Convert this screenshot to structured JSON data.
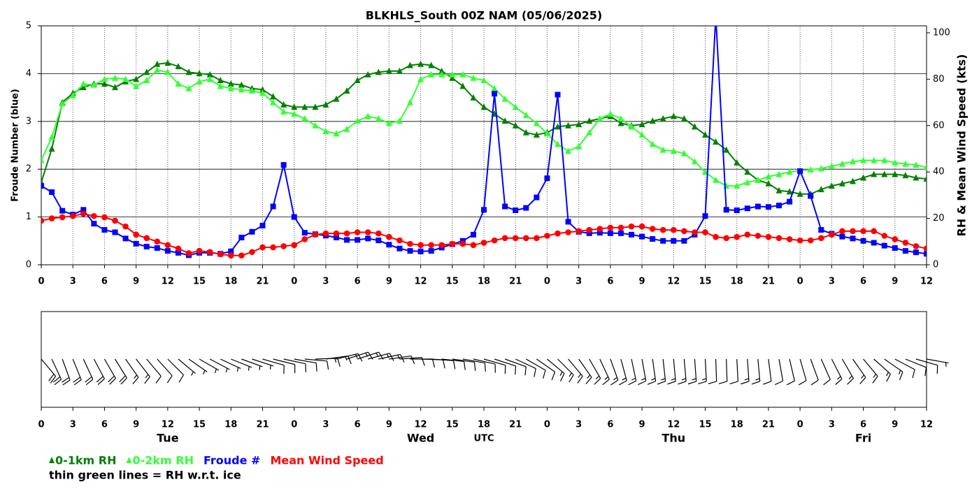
{
  "chart_data": {
    "type": "line",
    "title": "BLKHLS_South 00Z NAM (05/06/2025)",
    "ylabel": "Froude Number (blue)",
    "y2label": "RH & Mean Wind Speed (kts)",
    "xlabel": "UTC",
    "note": "thin green lines = RH w.r.t. ice",
    "xlim": [
      0,
      84
    ],
    "xticks": [
      0,
      3,
      6,
      9,
      12,
      15,
      18,
      21,
      {
        "value": 24,
        "label": "0"
      },
      {
        "value": 27,
        "label": "3"
      },
      {
        "value": 30,
        "label": "6"
      },
      {
        "value": 33,
        "label": "9"
      },
      {
        "value": 36,
        "label": "12"
      },
      {
        "value": 39,
        "label": "15"
      },
      {
        "value": 42,
        "label": "18"
      },
      {
        "value": 45,
        "label": "21"
      },
      {
        "value": 48,
        "label": "0"
      },
      {
        "value": 51,
        "label": "3"
      },
      {
        "value": 54,
        "label": "6"
      },
      {
        "value": 57,
        "label": "9"
      },
      {
        "value": 60,
        "label": "12"
      },
      {
        "value": 63,
        "label": "15"
      },
      {
        "value": 66,
        "label": "18"
      },
      {
        "value": 69,
        "label": "21"
      },
      {
        "value": 72,
        "label": "0"
      },
      {
        "value": 75,
        "label": "3"
      },
      {
        "value": 78,
        "label": "6"
      },
      {
        "value": 81,
        "label": "9"
      },
      {
        "value": 84,
        "label": "12"
      }
    ],
    "ylim": [
      0,
      5
    ],
    "yticks": [
      0,
      1,
      2,
      3,
      4,
      5
    ],
    "y2lim": [
      0,
      103
    ],
    "y2ticks": [
      0,
      20,
      40,
      60,
      80,
      100
    ],
    "grid": true,
    "day_labels": [
      {
        "label": "Tue",
        "x": 12
      },
      {
        "label": "Wed",
        "x": 36
      },
      {
        "label": "Thu",
        "x": 60
      },
      {
        "label": "Fri",
        "x": 78
      }
    ],
    "x": [
      0,
      1,
      2,
      3,
      4,
      5,
      6,
      7,
      8,
      9,
      10,
      11,
      12,
      13,
      14,
      15,
      16,
      17,
      18,
      19,
      20,
      21,
      22,
      23,
      24,
      25,
      26,
      27,
      28,
      29,
      30,
      31,
      32,
      33,
      34,
      35,
      36,
      37,
      38,
      39,
      40,
      41,
      42,
      43,
      44,
      45,
      46,
      47,
      48,
      49,
      50,
      51,
      52,
      53,
      54,
      55,
      56,
      57,
      58,
      59,
      60,
      61,
      62,
      63,
      64,
      65,
      66,
      67,
      68,
      69,
      70,
      71,
      72,
      73,
      74,
      75,
      76,
      77,
      78,
      79,
      80,
      81,
      82,
      83,
      84
    ],
    "series": [
      {
        "name": "0-1km RH",
        "color": "#008000",
        "marker": "triangle",
        "axis": "y2",
        "values": [
          35.5,
          50,
          70,
          74,
          76.5,
          78,
          78,
          76.5,
          79,
          80,
          83,
          86.5,
          87,
          85.5,
          83,
          82.5,
          82,
          79.5,
          78,
          77.5,
          76,
          75.5,
          72.5,
          69,
          68,
          68,
          68,
          69,
          71.5,
          75,
          79.5,
          82,
          83,
          83.5,
          83.5,
          86,
          86.5,
          86,
          83.5,
          80.5,
          77,
          72,
          68,
          65,
          62,
          60,
          57,
          56,
          57,
          59.5,
          60,
          60.5,
          62,
          63,
          64,
          61,
          60,
          60.5,
          62,
          63,
          64,
          63,
          59.5,
          56,
          53,
          49.5,
          44,
          40,
          36.5,
          35,
          32,
          31.5,
          30.5,
          30.5,
          32.5,
          34,
          35,
          36,
          37.5,
          39,
          39,
          39,
          38.5,
          37.5,
          37
        ]
      },
      {
        "name": "0-2km RH",
        "color": "#33ff33",
        "marker": "triangle",
        "axis": "y2",
        "values": [
          45,
          55,
          69.5,
          73,
          78,
          77.5,
          80,
          80.5,
          80,
          77,
          79.5,
          84,
          83,
          78,
          76,
          79,
          80,
          77,
          76,
          75.5,
          75,
          74,
          70,
          66,
          65,
          63,
          60,
          57.5,
          56.5,
          58.5,
          62,
          64,
          63,
          61,
          62,
          70,
          80,
          82,
          82,
          82,
          82,
          80.5,
          79.5,
          76,
          71.5,
          68,
          64.5,
          61,
          56.5,
          52,
          49,
          51,
          57,
          63,
          65,
          63,
          59.5,
          56,
          52,
          49.5,
          49,
          48,
          44.5,
          40,
          36.5,
          34,
          34,
          35.5,
          36.5,
          38,
          39,
          40,
          40.5,
          41,
          41.5,
          42.5,
          43.5,
          44.5,
          45,
          45,
          45,
          44,
          43.5,
          43,
          42
        ]
      },
      {
        "name": "Froude #",
        "color": "#0000ff",
        "marker": "square",
        "axis": "y",
        "values": [
          1.65,
          1.52,
          1.13,
          1.05,
          1.15,
          0.86,
          0.73,
          0.68,
          0.55,
          0.44,
          0.38,
          0.35,
          0.29,
          0.25,
          0.2,
          0.25,
          0.25,
          0.23,
          0.28,
          0.57,
          0.69,
          0.82,
          1.22,
          2.09,
          1.0,
          0.67,
          0.64,
          0.61,
          0.57,
          0.52,
          0.52,
          0.55,
          0.51,
          0.42,
          0.34,
          0.29,
          0.28,
          0.29,
          0.36,
          0.43,
          0.5,
          0.63,
          1.15,
          3.58,
          1.22,
          1.14,
          1.19,
          1.41,
          1.81,
          3.56,
          0.9,
          0.69,
          0.66,
          0.67,
          0.66,
          0.66,
          0.63,
          0.59,
          0.54,
          0.5,
          0.5,
          0.5,
          0.63,
          1.02,
          5.2,
          1.15,
          1.14,
          1.18,
          1.22,
          1.21,
          1.24,
          1.32,
          1.96,
          1.44,
          0.73,
          0.65,
          0.59,
          0.55,
          0.5,
          0.46,
          0.4,
          0.35,
          0.29,
          0.26,
          0.23
        ]
      },
      {
        "name": "Mean Wind Speed",
        "color": "#ff0000",
        "marker": "circle",
        "axis": "y2",
        "values": [
          19,
          20,
          20.5,
          21,
          22,
          21,
          20.5,
          19,
          16.5,
          13,
          11.5,
          10,
          8.5,
          7,
          5,
          6,
          5.5,
          4.5,
          4,
          4,
          5.5,
          7.5,
          7.5,
          8,
          8.5,
          11,
          13,
          13.5,
          13.5,
          13.5,
          14,
          14,
          13.5,
          12,
          10.5,
          9,
          8.5,
          8.5,
          8.5,
          9,
          9,
          8.5,
          9.5,
          10.5,
          11.5,
          11.5,
          11.5,
          11.5,
          12.5,
          13.5,
          14,
          14.5,
          15,
          15.5,
          16,
          16,
          16.5,
          16.5,
          15.5,
          15,
          15,
          14.5,
          14,
          14,
          12,
          11.5,
          12,
          13,
          12.5,
          12,
          11.5,
          11,
          10.5,
          10.5,
          11.5,
          13,
          14.5,
          14.5,
          14.5,
          14.5,
          12.5,
          11,
          9.5,
          8,
          7
        ]
      }
    ],
    "wind_direction": [
      320,
      335,
      340,
      338,
      335,
      332,
      330,
      328,
      325,
      322,
      320,
      318,
      315,
      310,
      305,
      300,
      298,
      295,
      292,
      290,
      288,
      286,
      284,
      282,
      280,
      275,
      268,
      262,
      256,
      252,
      252,
      255,
      258,
      262,
      266,
      270,
      272,
      274,
      276,
      278,
      280,
      283,
      286,
      288,
      290,
      295,
      300,
      305,
      310,
      315,
      320,
      325,
      330,
      335,
      340,
      345,
      348,
      350,
      352,
      354,
      355,
      355,
      356,
      357,
      358,
      358,
      357,
      356,
      355,
      353,
      350,
      347,
      344,
      340,
      336,
      333,
      330,
      325,
      320,
      312,
      305,
      298,
      292,
      286,
      280
    ]
  }
}
